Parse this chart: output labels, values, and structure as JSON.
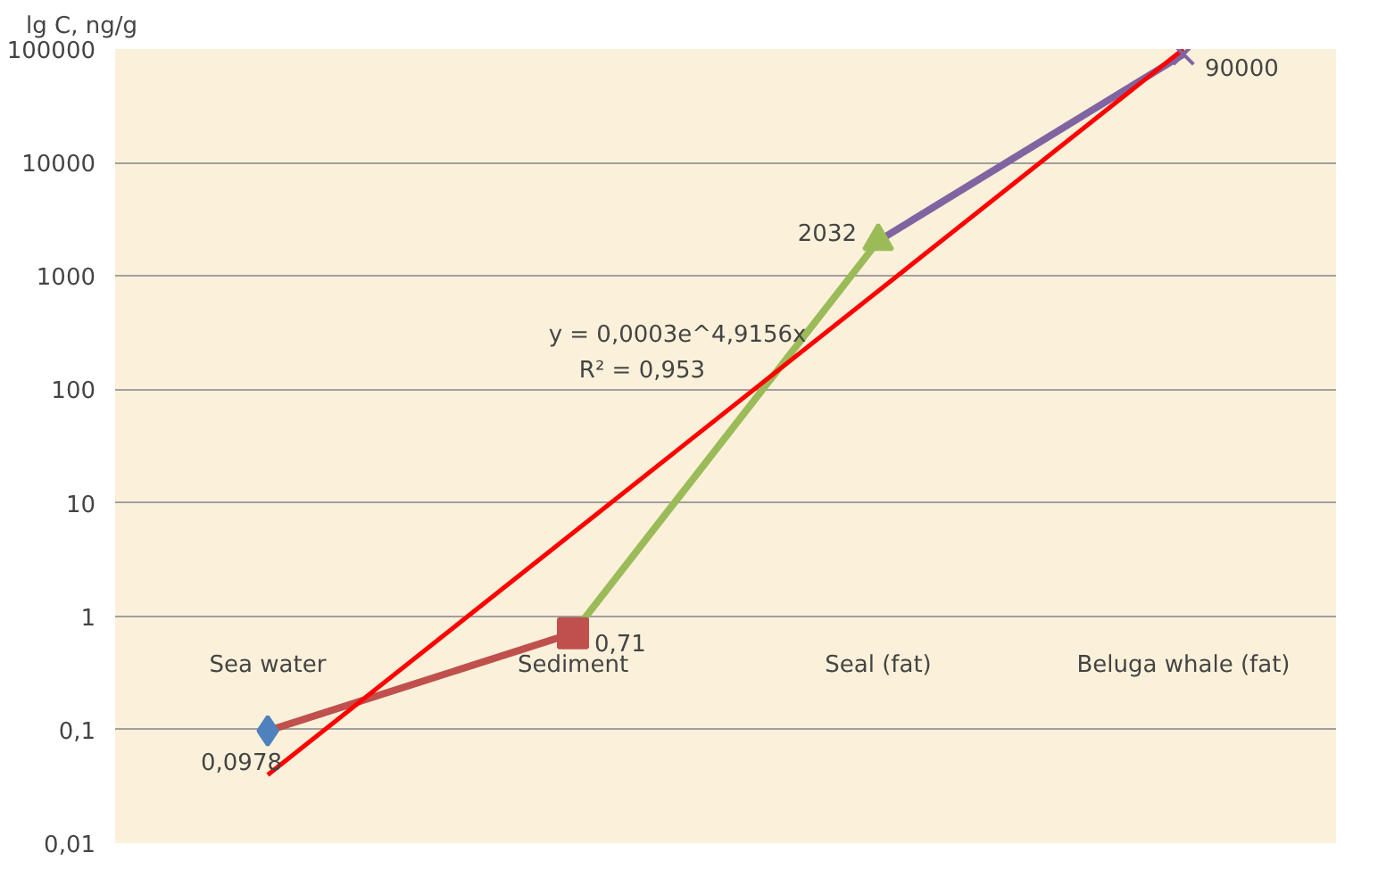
{
  "chart_data": {
    "type": "line",
    "ylabel": "lg C, ng/g",
    "categories": [
      "Sea water",
      "Sediment",
      "Seal (fat)",
      "Beluga whale (fat)"
    ],
    "log": "y",
    "ylim": [
      0.01,
      100000
    ],
    "yticks": [
      {
        "value": 0.01,
        "label": "0,01"
      },
      {
        "value": 0.1,
        "label": "0,1"
      },
      1,
      10,
      100,
      1000,
      10000,
      100000
    ],
    "grid": "y",
    "series": [
      {
        "color": "#c0504d",
        "values": [
          0.0978,
          0.71,
          null,
          null
        ]
      },
      {
        "color": "#9bbb59",
        "values": [
          null,
          0.71,
          2032,
          null
        ]
      },
      {
        "color": "#8064a2",
        "values": [
          null,
          null,
          2032,
          90000
        ]
      },
      {
        "type": "scatter",
        "marker": "diamond",
        "color": "#4f81bd",
        "values": [
          0.0978,
          null,
          null,
          null
        ],
        "value_labels": [
          "0,0978",
          null,
          null,
          null
        ]
      },
      {
        "type": "scatter",
        "marker": "square",
        "color": "#c0504d",
        "values": [
          null,
          0.71,
          null,
          null
        ],
        "value_labels": [
          null,
          "0,71",
          null,
          null
        ]
      },
      {
        "type": "scatter",
        "marker": "triangle",
        "color": "#9bbb59",
        "values": [
          null,
          null,
          2032,
          null
        ],
        "value_labels": [
          null,
          null,
          "2032",
          null
        ]
      },
      {
        "type": "scatter",
        "marker": "cross",
        "color": "#8064a2",
        "values": [
          null,
          null,
          null,
          90000
        ],
        "value_labels": [
          null,
          null,
          null,
          "90000"
        ]
      },
      {
        "color": "#ff0000",
        "x": [
          "Sea water",
          "Beluga whale (fat)"
        ],
        "values": [
          0.04,
          100000
        ]
      }
    ],
    "annotations": [
      "y = 0,0003e^4,9156x",
      "R² = 0,953"
    ]
  }
}
